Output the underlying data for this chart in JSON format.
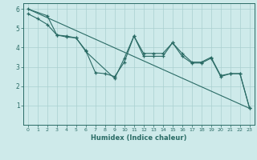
{
  "xlabel": "Humidex (Indice chaleur)",
  "xlim": [
    -0.5,
    23.5
  ],
  "ylim": [
    0,
    6.3
  ],
  "xticks": [
    0,
    1,
    2,
    3,
    4,
    5,
    6,
    7,
    8,
    9,
    10,
    11,
    12,
    13,
    14,
    15,
    16,
    17,
    18,
    19,
    20,
    21,
    22,
    23
  ],
  "yticks": [
    1,
    2,
    3,
    4,
    5,
    6
  ],
  "bg_color": "#ceeaea",
  "line_color": "#2a6b65",
  "grid_color": "#aacfcf",
  "line1_x": [
    0,
    23
  ],
  "line1_y": [
    6.0,
    0.85
  ],
  "line2_x": [
    0,
    1,
    2,
    3,
    4,
    5,
    6,
    7,
    8,
    9,
    10,
    11,
    12,
    13,
    14,
    15,
    16,
    17,
    18,
    19,
    20,
    21,
    22,
    23
  ],
  "line2_y": [
    5.75,
    5.5,
    5.2,
    4.65,
    4.55,
    4.5,
    3.85,
    2.7,
    2.65,
    2.5,
    3.25,
    4.6,
    3.7,
    3.7,
    3.7,
    4.25,
    3.7,
    3.25,
    3.25,
    3.5,
    2.55,
    2.65,
    2.65,
    0.85
  ],
  "line3_x": [
    0,
    2,
    3,
    4,
    5,
    6,
    9,
    10,
    11,
    12,
    13,
    14,
    15,
    16,
    17,
    18,
    19,
    20,
    21,
    22,
    23
  ],
  "line3_y": [
    6.0,
    5.65,
    4.65,
    4.6,
    4.5,
    3.8,
    2.4,
    3.45,
    4.6,
    3.55,
    3.55,
    3.55,
    4.25,
    3.55,
    3.2,
    3.2,
    3.45,
    2.5,
    2.65,
    2.65,
    0.85
  ]
}
